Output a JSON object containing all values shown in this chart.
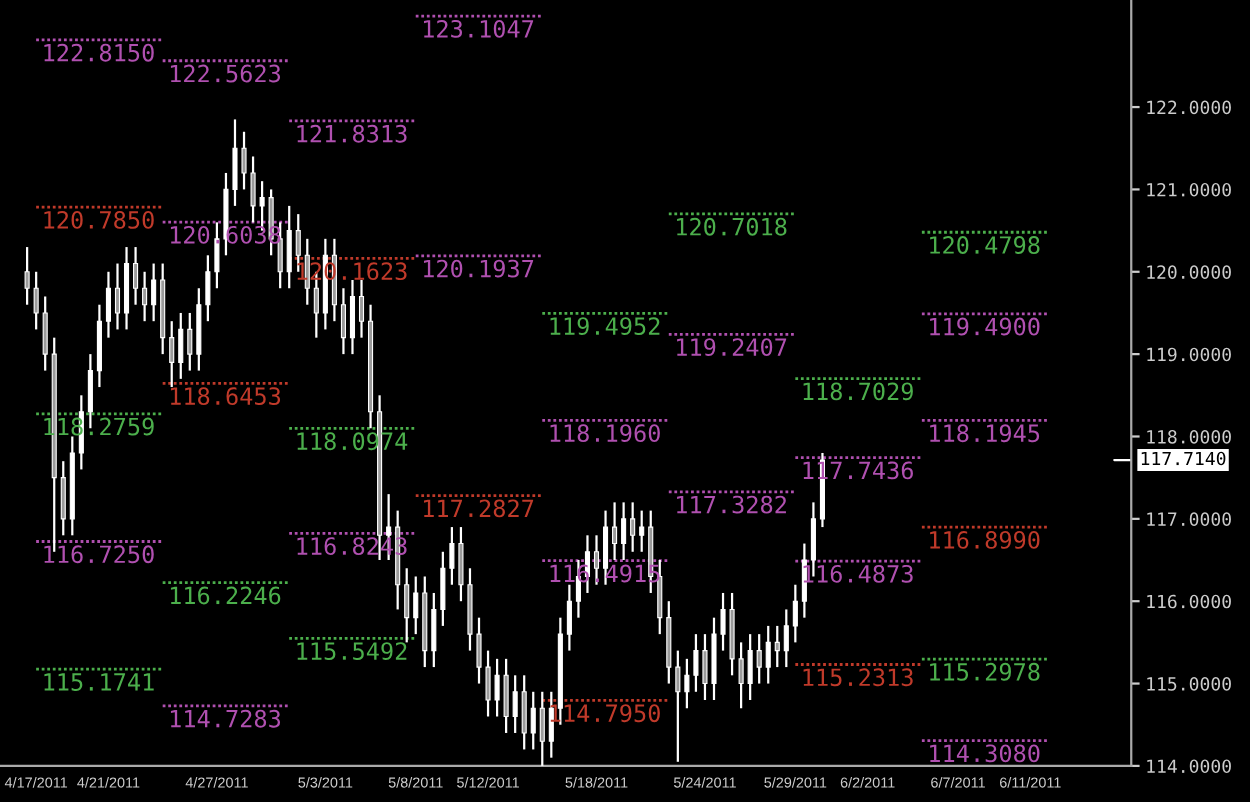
{
  "chart_data": {
    "type": "candlestick",
    "color": "#ffffff",
    "x": [
      "2011-04-16T12:00",
      "2011-04-17T00:00",
      "2011-04-17T12:00",
      "2011-04-18T00:00",
      "2011-04-18T12:00",
      "2011-04-19T00:00",
      "2011-04-19T12:00",
      "2011-04-20T00:00",
      "2011-04-20T12:00",
      "2011-04-21T00:00",
      "2011-04-21T12:00",
      "2011-04-22T00:00",
      "2011-04-22T12:00",
      "2011-04-23T00:00",
      "2011-04-23T12:00",
      "2011-04-24T00:00",
      "2011-04-24T12:00",
      "2011-04-25T00:00",
      "2011-04-25T12:00",
      "2011-04-26T00:00",
      "2011-04-26T12:00",
      "2011-04-27T00:00",
      "2011-04-27T12:00",
      "2011-04-28T00:00",
      "2011-04-28T12:00",
      "2011-04-29T00:00",
      "2011-04-29T12:00",
      "2011-04-30T00:00",
      "2011-04-30T12:00",
      "2011-05-01T00:00",
      "2011-05-01T12:00",
      "2011-05-02T00:00",
      "2011-05-02T12:00",
      "2011-05-03T00:00",
      "2011-05-03T12:00",
      "2011-05-04T00:00",
      "2011-05-04T12:00",
      "2011-05-05T00:00",
      "2011-05-05T12:00",
      "2011-05-06T00:00",
      "2011-05-06T12:00",
      "2011-05-07T00:00",
      "2011-05-07T12:00",
      "2011-05-08T00:00",
      "2011-05-08T12:00",
      "2011-05-09T00:00",
      "2011-05-09T12:00",
      "2011-05-10T00:00",
      "2011-05-10T12:00",
      "2011-05-11T00:00",
      "2011-05-11T12:00",
      "2011-05-12T00:00",
      "2011-05-12T12:00",
      "2011-05-13T00:00",
      "2011-05-13T12:00",
      "2011-05-14T00:00",
      "2011-05-14T12:00",
      "2011-05-15T00:00",
      "2011-05-15T12:00",
      "2011-05-16T00:00",
      "2011-05-16T12:00",
      "2011-05-17T00:00",
      "2011-05-17T12:00",
      "2011-05-18T00:00",
      "2011-05-18T12:00",
      "2011-05-19T00:00",
      "2011-05-19T12:00",
      "2011-05-20T00:00",
      "2011-05-20T12:00",
      "2011-05-21T00:00",
      "2011-05-21T12:00",
      "2011-05-22T00:00",
      "2011-05-22T12:00",
      "2011-05-23T00:00",
      "2011-05-23T12:00",
      "2011-05-24T00:00",
      "2011-05-24T12:00",
      "2011-05-25T00:00",
      "2011-05-25T12:00",
      "2011-05-26T00:00",
      "2011-05-26T12:00",
      "2011-05-27T00:00",
      "2011-05-27T12:00",
      "2011-05-28T00:00",
      "2011-05-28T12:00",
      "2011-05-29T00:00",
      "2011-05-29T12:00",
      "2011-05-30T00:00",
      "2011-05-30T12:00"
    ],
    "ohlc": [
      [
        120.0,
        120.3,
        119.6,
        119.8
      ],
      [
        119.8,
        120.0,
        119.3,
        119.5
      ],
      [
        119.5,
        119.7,
        118.8,
        119.0
      ],
      [
        119.0,
        119.2,
        116.6,
        117.5
      ],
      [
        117.5,
        117.7,
        116.8,
        117.0
      ],
      [
        117.0,
        118.0,
        116.8,
        117.8
      ],
      [
        117.8,
        118.5,
        117.6,
        118.3
      ],
      [
        118.3,
        119.0,
        118.1,
        118.8
      ],
      [
        118.8,
        119.6,
        118.6,
        119.4
      ],
      [
        119.4,
        120.0,
        119.2,
        119.8
      ],
      [
        119.8,
        120.1,
        119.3,
        119.5
      ],
      [
        119.5,
        120.3,
        119.3,
        120.1
      ],
      [
        120.1,
        120.3,
        119.6,
        119.8
      ],
      [
        119.8,
        120.0,
        119.4,
        119.6
      ],
      [
        119.6,
        120.1,
        119.4,
        119.9
      ],
      [
        119.9,
        120.1,
        119.0,
        119.2
      ],
      [
        119.2,
        119.4,
        118.6,
        118.9
      ],
      [
        118.9,
        119.5,
        118.7,
        119.3
      ],
      [
        119.3,
        119.5,
        118.8,
        119.0
      ],
      [
        119.0,
        119.8,
        118.8,
        119.6
      ],
      [
        119.6,
        120.2,
        119.4,
        120.0
      ],
      [
        120.0,
        120.6,
        119.8,
        120.4
      ],
      [
        120.4,
        121.2,
        120.2,
        121.0
      ],
      [
        121.0,
        121.85,
        120.8,
        121.5
      ],
      [
        121.5,
        121.7,
        121.0,
        121.2
      ],
      [
        121.2,
        121.4,
        120.6,
        120.8
      ],
      [
        120.8,
        121.1,
        120.5,
        120.9
      ],
      [
        120.9,
        121.0,
        120.2,
        120.4
      ],
      [
        120.4,
        120.6,
        119.8,
        120.0
      ],
      [
        120.0,
        120.8,
        119.8,
        120.5
      ],
      [
        120.5,
        120.7,
        120.0,
        120.2
      ],
      [
        120.2,
        120.4,
        119.6,
        119.8
      ],
      [
        119.8,
        120.0,
        119.2,
        119.5
      ],
      [
        119.5,
        120.4,
        119.3,
        120.2
      ],
      [
        120.2,
        120.4,
        119.4,
        119.6
      ],
      [
        119.6,
        119.8,
        119.0,
        119.2
      ],
      [
        119.2,
        119.9,
        119.0,
        119.7
      ],
      [
        119.7,
        119.9,
        119.2,
        119.4
      ],
      [
        119.4,
        119.6,
        118.1,
        118.3
      ],
      [
        118.3,
        118.5,
        116.5,
        116.8
      ],
      [
        116.8,
        117.3,
        116.5,
        116.9
      ],
      [
        116.9,
        117.1,
        115.9,
        116.2
      ],
      [
        116.2,
        116.4,
        115.5,
        115.8
      ],
      [
        115.8,
        116.3,
        115.6,
        116.1
      ],
      [
        116.1,
        116.3,
        115.2,
        115.4
      ],
      [
        115.4,
        116.1,
        115.2,
        115.9
      ],
      [
        115.9,
        116.6,
        115.7,
        116.4
      ],
      [
        116.4,
        116.9,
        116.2,
        116.7
      ],
      [
        116.7,
        116.9,
        116.0,
        116.2
      ],
      [
        116.2,
        116.4,
        115.4,
        115.6
      ],
      [
        115.6,
        115.8,
        115.0,
        115.2
      ],
      [
        115.2,
        115.4,
        114.6,
        114.8
      ],
      [
        114.8,
        115.3,
        114.6,
        115.1
      ],
      [
        115.1,
        115.3,
        114.4,
        114.6
      ],
      [
        114.6,
        115.1,
        114.4,
        114.9
      ],
      [
        114.9,
        115.1,
        114.2,
        114.4
      ],
      [
        114.4,
        114.9,
        114.2,
        114.7
      ],
      [
        114.7,
        114.9,
        114.0,
        114.3
      ],
      [
        114.3,
        114.9,
        114.1,
        114.7
      ],
      [
        114.7,
        115.8,
        114.5,
        115.6
      ],
      [
        115.6,
        116.2,
        115.4,
        116.0
      ],
      [
        116.0,
        116.5,
        115.8,
        116.3
      ],
      [
        116.3,
        116.8,
        116.1,
        116.6
      ],
      [
        116.6,
        116.8,
        116.2,
        116.4
      ],
      [
        116.4,
        117.1,
        116.2,
        116.9
      ],
      [
        116.9,
        117.2,
        116.5,
        116.7
      ],
      [
        116.7,
        117.2,
        116.5,
        117.0
      ],
      [
        117.0,
        117.2,
        116.6,
        116.8
      ],
      [
        116.8,
        117.1,
        116.6,
        116.9
      ],
      [
        116.9,
        117.1,
        116.1,
        116.3
      ],
      [
        116.3,
        116.5,
        115.6,
        115.8
      ],
      [
        115.8,
        116.0,
        115.0,
        115.2
      ],
      [
        115.2,
        115.4,
        114.05,
        114.9
      ],
      [
        114.9,
        115.3,
        114.7,
        115.1
      ],
      [
        115.1,
        115.6,
        114.9,
        115.4
      ],
      [
        115.4,
        115.6,
        114.8,
        115.0
      ],
      [
        115.0,
        115.8,
        114.8,
        115.6
      ],
      [
        115.6,
        116.1,
        115.4,
        115.9
      ],
      [
        115.9,
        116.1,
        115.1,
        115.3
      ],
      [
        115.3,
        115.5,
        114.7,
        115.0
      ],
      [
        115.0,
        115.6,
        114.8,
        115.4
      ],
      [
        115.4,
        115.6,
        115.0,
        115.2
      ],
      [
        115.2,
        115.7,
        115.0,
        115.5
      ],
      [
        115.5,
        115.7,
        115.2,
        115.4
      ],
      [
        115.4,
        115.9,
        115.2,
        115.7
      ],
      [
        115.7,
        116.2,
        115.5,
        116.0
      ],
      [
        116.0,
        116.7,
        115.8,
        116.5
      ],
      [
        116.5,
        117.2,
        116.3,
        117.0
      ],
      [
        117.0,
        117.8,
        116.9,
        117.714
      ]
    ],
    "series": [
      {
        "type": "line",
        "line_style": "dotted",
        "color": "#b050b0",
        "x": [
          "2011-04-17",
          "2011-04-24"
        ],
        "values": [
          122.815,
          122.815
        ],
        "value_labels": [
          "122.8150",
          null
        ]
      },
      {
        "type": "line",
        "line_style": "dotted",
        "color": "#c03a2a",
        "x": [
          "2011-04-17",
          "2011-04-24"
        ],
        "values": [
          120.785,
          120.785
        ],
        "value_labels": [
          "120.7850",
          null
        ]
      },
      {
        "type": "line",
        "line_style": "dotted",
        "color": "#4caf4c",
        "x": [
          "2011-04-17",
          "2011-04-24"
        ],
        "values": [
          118.2759,
          118.2759
        ],
        "value_labels": [
          "118.2759",
          null
        ]
      },
      {
        "type": "line",
        "line_style": "dotted",
        "color": "#b050b0",
        "x": [
          "2011-04-17",
          "2011-04-24"
        ],
        "values": [
          116.725,
          116.725
        ],
        "value_labels": [
          "116.7250",
          null
        ]
      },
      {
        "type": "line",
        "line_style": "dotted",
        "color": "#4caf4c",
        "x": [
          "2011-04-17",
          "2011-04-24"
        ],
        "values": [
          115.1741,
          115.1741
        ],
        "value_labels": [
          "115.1741",
          null
        ]
      },
      {
        "type": "line",
        "line_style": "dotted",
        "color": "#b050b0",
        "x": [
          "2011-04-24",
          "2011-05-01"
        ],
        "values": [
          122.5623,
          122.5623
        ],
        "value_labels": [
          "122.5623",
          null
        ]
      },
      {
        "type": "line",
        "line_style": "dotted",
        "color": "#b050b0",
        "x": [
          "2011-04-24",
          "2011-05-01"
        ],
        "values": [
          120.6038,
          120.6038
        ],
        "value_labels": [
          "120.6038",
          null
        ]
      },
      {
        "type": "line",
        "line_style": "dotted",
        "color": "#c03a2a",
        "x": [
          "2011-04-24",
          "2011-05-01"
        ],
        "values": [
          118.6453,
          118.6453
        ],
        "value_labels": [
          "118.6453",
          null
        ]
      },
      {
        "type": "line",
        "line_style": "dotted",
        "color": "#4caf4c",
        "x": [
          "2011-04-24",
          "2011-05-01"
        ],
        "values": [
          116.2246,
          116.2246
        ],
        "value_labels": [
          "116.2246",
          null
        ]
      },
      {
        "type": "line",
        "line_style": "dotted",
        "color": "#b050b0",
        "x": [
          "2011-04-24",
          "2011-05-01"
        ],
        "values": [
          114.7283,
          114.7283
        ],
        "value_labels": [
          "114.7283",
          null
        ]
      },
      {
        "type": "line",
        "line_style": "dotted",
        "color": "#b050b0",
        "x": [
          "2011-05-01",
          "2011-05-08"
        ],
        "values": [
          121.8313,
          121.8313
        ],
        "value_labels": [
          "121.8313",
          null
        ]
      },
      {
        "type": "line",
        "line_style": "dotted",
        "color": "#c03a2a",
        "x": [
          "2011-05-01",
          "2011-05-08"
        ],
        "values": [
          120.1623,
          120.1623
        ],
        "value_labels": [
          "120.1623",
          null
        ]
      },
      {
        "type": "line",
        "line_style": "dotted",
        "color": "#4caf4c",
        "x": [
          "2011-05-01",
          "2011-05-08"
        ],
        "values": [
          118.0974,
          118.0974
        ],
        "value_labels": [
          "118.0974",
          null
        ]
      },
      {
        "type": "line",
        "line_style": "dotted",
        "color": "#b050b0",
        "x": [
          "2011-05-01",
          "2011-05-08"
        ],
        "values": [
          116.8243,
          116.8243
        ],
        "value_labels": [
          "116.8243",
          null
        ]
      },
      {
        "type": "line",
        "line_style": "dotted",
        "color": "#4caf4c",
        "x": [
          "2011-05-01",
          "2011-05-08"
        ],
        "values": [
          115.5492,
          115.5492
        ],
        "value_labels": [
          "115.5492",
          null
        ]
      },
      {
        "type": "line",
        "line_style": "dotted",
        "color": "#b050b0",
        "x": [
          "2011-05-08",
          "2011-05-15"
        ],
        "values": [
          123.1047,
          123.1047
        ],
        "value_labels": [
          "123.1047",
          null
        ]
      },
      {
        "type": "line",
        "line_style": "dotted",
        "color": "#b050b0",
        "x": [
          "2011-05-08",
          "2011-05-15"
        ],
        "values": [
          120.1937,
          120.1937
        ],
        "value_labels": [
          "120.1937",
          null
        ]
      },
      {
        "type": "line",
        "line_style": "dotted",
        "color": "#c03a2a",
        "x": [
          "2011-05-08",
          "2011-05-15"
        ],
        "values": [
          117.2827,
          117.2827
        ],
        "value_labels": [
          "117.2827",
          null
        ]
      },
      {
        "type": "line",
        "line_style": "dotted",
        "color": "#4caf4c",
        "x": [
          "2011-05-15",
          "2011-05-22"
        ],
        "values": [
          119.4952,
          119.4952
        ],
        "value_labels": [
          "119.4952",
          null
        ]
      },
      {
        "type": "line",
        "line_style": "dotted",
        "color": "#b050b0",
        "x": [
          "2011-05-15",
          "2011-05-22"
        ],
        "values": [
          118.196,
          118.196
        ],
        "value_labels": [
          "118.1960",
          null
        ]
      },
      {
        "type": "line",
        "line_style": "dotted",
        "color": "#b050b0",
        "x": [
          "2011-05-15",
          "2011-05-22"
        ],
        "values": [
          116.4915,
          116.4915
        ],
        "value_labels": [
          "116.4915",
          null
        ]
      },
      {
        "type": "line",
        "line_style": "dotted",
        "color": "#c03a2a",
        "x": [
          "2011-05-15",
          "2011-05-22"
        ],
        "values": [
          114.795,
          114.795
        ],
        "value_labels": [
          "114.7950",
          null
        ]
      },
      {
        "type": "line",
        "line_style": "dotted",
        "color": "#4caf4c",
        "x": [
          "2011-05-22",
          "2011-05-29"
        ],
        "values": [
          120.7018,
          120.7018
        ],
        "value_labels": [
          "120.7018",
          null
        ]
      },
      {
        "type": "line",
        "line_style": "dotted",
        "color": "#b050b0",
        "x": [
          "2011-05-22",
          "2011-05-29"
        ],
        "values": [
          119.2407,
          119.2407
        ],
        "value_labels": [
          "119.2407",
          null
        ]
      },
      {
        "type": "line",
        "line_style": "dotted",
        "color": "#b050b0",
        "x": [
          "2011-05-22",
          "2011-05-29"
        ],
        "values": [
          117.3282,
          117.3282
        ],
        "value_labels": [
          "117.3282",
          null
        ]
      },
      {
        "type": "line",
        "line_style": "dotted",
        "color": "#4caf4c",
        "x": [
          "2011-05-29",
          "2011-06-05"
        ],
        "values": [
          118.7029,
          118.7029
        ],
        "value_labels": [
          "118.7029",
          null
        ]
      },
      {
        "type": "line",
        "line_style": "dotted",
        "color": "#b050b0",
        "x": [
          "2011-05-29",
          "2011-06-05"
        ],
        "values": [
          117.7436,
          117.7436
        ],
        "value_labels": [
          "117.7436",
          null
        ]
      },
      {
        "type": "line",
        "line_style": "dotted",
        "color": "#b050b0",
        "x": [
          "2011-05-29",
          "2011-06-05"
        ],
        "values": [
          116.4873,
          116.4873
        ],
        "value_labels": [
          "116.4873",
          null
        ]
      },
      {
        "type": "line",
        "line_style": "dotted",
        "color": "#c03a2a",
        "x": [
          "2011-05-29",
          "2011-06-05"
        ],
        "values": [
          115.2313,
          115.2313
        ],
        "value_labels": [
          "115.2313",
          null
        ]
      },
      {
        "type": "line",
        "line_style": "dotted",
        "color": "#4caf4c",
        "x": [
          "2011-06-05",
          "2011-06-12"
        ],
        "values": [
          120.4798,
          120.4798
        ],
        "value_labels": [
          "120.4798",
          null
        ]
      },
      {
        "type": "line",
        "line_style": "dotted",
        "color": "#b050b0",
        "x": [
          "2011-06-05",
          "2011-06-12"
        ],
        "values": [
          119.49,
          119.49
        ],
        "value_labels": [
          "119.4900",
          null
        ]
      },
      {
        "type": "line",
        "line_style": "dotted",
        "color": "#b050b0",
        "x": [
          "2011-06-05",
          "2011-06-12"
        ],
        "values": [
          118.1945,
          118.1945
        ],
        "value_labels": [
          "118.1945",
          null
        ]
      },
      {
        "type": "line",
        "line_style": "dotted",
        "color": "#c03a2a",
        "x": [
          "2011-06-05",
          "2011-06-12"
        ],
        "values": [
          116.899,
          116.899
        ],
        "value_labels": [
          "116.8990",
          null
        ]
      },
      {
        "type": "line",
        "line_style": "dotted",
        "color": "#4caf4c",
        "x": [
          "2011-06-05",
          "2011-06-12"
        ],
        "values": [
          115.2978,
          115.2978
        ],
        "value_labels": [
          "115.2978",
          null
        ]
      },
      {
        "type": "line",
        "line_style": "dotted",
        "color": "#b050b0",
        "x": [
          "2011-06-05",
          "2011-06-12"
        ],
        "values": [
          114.308,
          114.308
        ],
        "value_labels": [
          "114.3080",
          null
        ]
      }
    ],
    "ref_lines": [
      {
        "axis": "y",
        "value": 117.714,
        "label": "117.7140",
        "color": "#ffffff"
      }
    ],
    "xlim": [
      "2011-04-15T00:00",
      "2011-06-16T14:00"
    ],
    "xticks": [
      {
        "value": "2011-04-17",
        "label": "4/17/2011"
      },
      {
        "value": "2011-04-21",
        "label": "4/21/2011"
      },
      {
        "value": "2011-04-27",
        "label": "4/27/2011"
      },
      {
        "value": "2011-05-03",
        "label": "5/3/2011"
      },
      {
        "value": "2011-05-08",
        "label": "5/8/2011"
      },
      {
        "value": "2011-05-12",
        "label": "5/12/2011"
      },
      {
        "value": "2011-05-18",
        "label": "5/18/2011"
      },
      {
        "value": "2011-05-24",
        "label": "5/24/2011"
      },
      {
        "value": "2011-05-29",
        "label": "5/29/2011"
      },
      {
        "value": "2011-06-02",
        "label": "6/2/2011"
      },
      {
        "value": "2011-06-07",
        "label": "6/7/2011"
      },
      {
        "value": "2011-06-11",
        "label": "6/11/2011"
      }
    ],
    "ylim": [
      114.0,
      123.3
    ],
    "yticks": [
      {
        "value": 114,
        "label": "114.0000"
      },
      {
        "value": 115,
        "label": "115.0000"
      },
      {
        "value": 116,
        "label": "116.0000"
      },
      {
        "value": 117,
        "label": "117.0000"
      },
      {
        "value": 118,
        "label": "118.0000"
      },
      {
        "value": 119,
        "label": "119.0000"
      },
      {
        "value": 120,
        "label": "120.0000"
      },
      {
        "value": 121,
        "label": "121.0000"
      },
      {
        "value": 122,
        "label": "122.0000"
      }
    ]
  }
}
